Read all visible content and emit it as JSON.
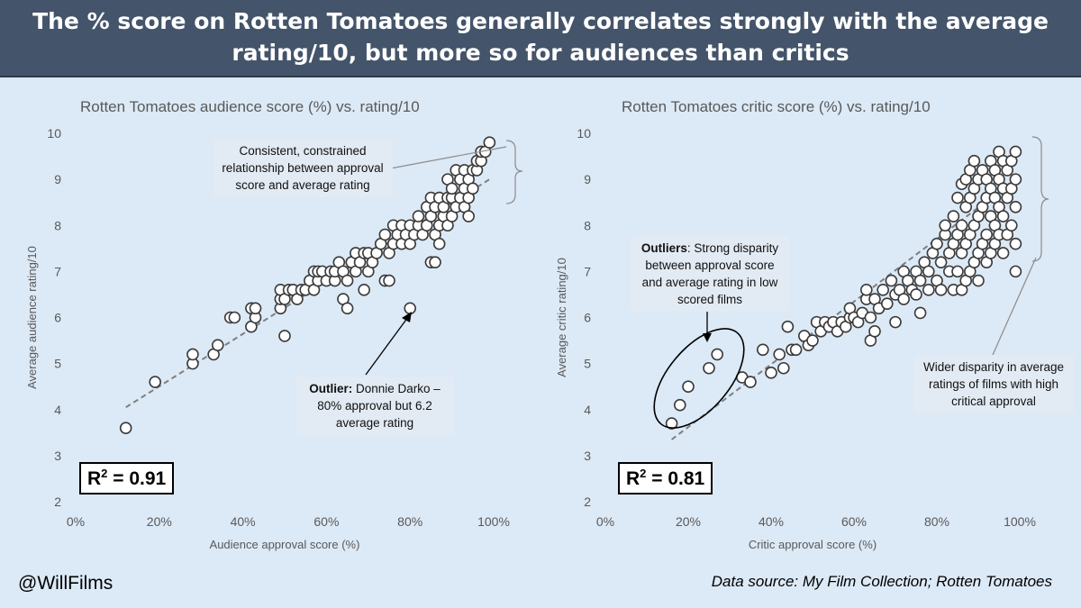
{
  "banner": {
    "line1": "The % score on Rotten Tomatoes generally correlates strongly with the average",
    "line2": "rating/10, but more so for audiences than critics"
  },
  "footer": {
    "handle": "@WillFilms",
    "source": "Data source: My Film Collection; Rotten Tomatoes"
  },
  "chart_data": [
    {
      "type": "scatter",
      "title": "Rotten Tomatoes audience score (%) vs. rating/10",
      "xlabel": "Audience approval score (%)",
      "ylabel": "Average audience rating/10",
      "xlim": [
        0,
        100
      ],
      "ylim": [
        2,
        10
      ],
      "xticks": [
        "0%",
        "20%",
        "40%",
        "60%",
        "80%",
        "100%"
      ],
      "yticks": [
        "2",
        "3",
        "4",
        "5",
        "6",
        "7",
        "8",
        "9",
        "10"
      ],
      "trendline": {
        "style": "dashed",
        "x": [
          12,
          99
        ],
        "y": [
          4.05,
          9.0
        ]
      },
      "r2_label": "0.91",
      "annotations": [
        {
          "label": "Consistent, constrained relationship between approval score and average rating"
        },
        {
          "bold": "Outlier:",
          "label": " Donnie Darko – 80% approval but 6.2 average rating"
        }
      ],
      "points": [
        [
          12,
          3.6
        ],
        [
          19,
          4.6
        ],
        [
          28,
          5.0
        ],
        [
          28,
          5.2
        ],
        [
          33,
          5.2
        ],
        [
          34,
          5.4
        ],
        [
          37,
          6.0
        ],
        [
          38,
          6.0
        ],
        [
          42,
          5.8
        ],
        [
          42,
          6.2
        ],
        [
          43,
          6.0
        ],
        [
          43,
          6.2
        ],
        [
          49,
          6.2
        ],
        [
          49,
          6.4
        ],
        [
          49,
          6.6
        ],
        [
          50,
          5.6
        ],
        [
          50,
          6.4
        ],
        [
          51,
          6.6
        ],
        [
          52,
          6.6
        ],
        [
          53,
          6.4
        ],
        [
          54,
          6.6
        ],
        [
          55,
          6.6
        ],
        [
          56,
          6.8
        ],
        [
          57,
          6.6
        ],
        [
          57,
          7.0
        ],
        [
          58,
          6.8
        ],
        [
          58,
          7.0
        ],
        [
          59,
          7.0
        ],
        [
          60,
          6.8
        ],
        [
          61,
          7.0
        ],
        [
          62,
          6.8
        ],
        [
          62,
          7.0
        ],
        [
          63,
          7.2
        ],
        [
          64,
          6.4
        ],
        [
          64,
          7.0
        ],
        [
          65,
          6.2
        ],
        [
          65,
          6.8
        ],
        [
          66,
          7.2
        ],
        [
          67,
          7.0
        ],
        [
          67,
          7.4
        ],
        [
          68,
          7.2
        ],
        [
          69,
          6.6
        ],
        [
          69,
          7.4
        ],
        [
          70,
          7.0
        ],
        [
          70,
          7.4
        ],
        [
          71,
          7.2
        ],
        [
          72,
          7.4
        ],
        [
          73,
          7.6
        ],
        [
          74,
          6.8
        ],
        [
          74,
          7.8
        ],
        [
          75,
          6.8
        ],
        [
          75,
          7.4
        ],
        [
          76,
          7.6
        ],
        [
          76,
          8.0
        ],
        [
          77,
          7.8
        ],
        [
          78,
          7.6
        ],
        [
          78,
          8.0
        ],
        [
          79,
          7.8
        ],
        [
          80,
          6.2
        ],
        [
          80,
          7.6
        ],
        [
          80,
          8.0
        ],
        [
          81,
          7.8
        ],
        [
          82,
          8.0
        ],
        [
          82,
          8.2
        ],
        [
          83,
          7.8
        ],
        [
          84,
          8.0
        ],
        [
          84,
          8.4
        ],
        [
          85,
          7.2
        ],
        [
          85,
          8.2
        ],
        [
          85,
          8.6
        ],
        [
          86,
          7.2
        ],
        [
          86,
          7.8
        ],
        [
          86,
          8.4
        ],
        [
          87,
          7.6
        ],
        [
          87,
          8.0
        ],
        [
          87,
          8.6
        ],
        [
          88,
          8.2
        ],
        [
          88,
          8.4
        ],
        [
          89,
          8.0
        ],
        [
          89,
          8.6
        ],
        [
          89,
          9.0
        ],
        [
          90,
          8.2
        ],
        [
          90,
          8.6
        ],
        [
          90,
          8.8
        ],
        [
          91,
          8.4
        ],
        [
          91,
          9.2
        ],
        [
          92,
          8.6
        ],
        [
          92,
          9.0
        ],
        [
          93,
          8.4
        ],
        [
          93,
          8.8
        ],
        [
          93,
          9.2
        ],
        [
          94,
          8.2
        ],
        [
          94,
          8.6
        ],
        [
          94,
          9.0
        ],
        [
          95,
          8.8
        ],
        [
          95,
          9.2
        ],
        [
          96,
          9.2
        ],
        [
          96,
          9.4
        ],
        [
          97,
          9.4
        ],
        [
          97,
          9.6
        ],
        [
          98,
          9.6
        ],
        [
          99,
          9.8
        ]
      ]
    },
    {
      "type": "scatter",
      "title": "Rotten Tomatoes critic score (%) vs. rating/10",
      "xlabel": "Critic approval score (%)",
      "ylabel": "Average critic rating/10",
      "xlim": [
        0,
        100
      ],
      "ylim": [
        2,
        10
      ],
      "xticks": [
        "0%",
        "20%",
        "40%",
        "60%",
        "80%",
        "100%"
      ],
      "yticks": [
        "2",
        "3",
        "4",
        "5",
        "6",
        "7",
        "8",
        "9",
        "10"
      ],
      "trendline": {
        "style": "dashed",
        "x": [
          16,
          99
        ],
        "y": [
          3.35,
          9.0
        ]
      },
      "r2_label": "0.81",
      "annotations": [
        {
          "bold": "Outliers",
          "label": ": Strong disparity between approval score and average rating in low scored films"
        },
        {
          "label": "Wider disparity in average ratings of films with high critical approval"
        }
      ],
      "points": [
        [
          16,
          3.7
        ],
        [
          18,
          4.1
        ],
        [
          20,
          4.5
        ],
        [
          25,
          4.9
        ],
        [
          27,
          5.2
        ],
        [
          33,
          4.7
        ],
        [
          35,
          4.6
        ],
        [
          38,
          5.3
        ],
        [
          40,
          4.8
        ],
        [
          42,
          5.2
        ],
        [
          43,
          4.9
        ],
        [
          44,
          5.8
        ],
        [
          45,
          5.3
        ],
        [
          46,
          5.3
        ],
        [
          48,
          5.6
        ],
        [
          49,
          5.4
        ],
        [
          50,
          5.5
        ],
        [
          51,
          5.9
        ],
        [
          52,
          5.7
        ],
        [
          53,
          5.9
        ],
        [
          54,
          5.8
        ],
        [
          55,
          5.9
        ],
        [
          56,
          5.7
        ],
        [
          57,
          5.9
        ],
        [
          58,
          5.8
        ],
        [
          59,
          6.0
        ],
        [
          59,
          6.2
        ],
        [
          60,
          6.0
        ],
        [
          61,
          5.9
        ],
        [
          62,
          6.1
        ],
        [
          63,
          6.4
        ],
        [
          63,
          6.6
        ],
        [
          64,
          5.5
        ],
        [
          64,
          6.0
        ],
        [
          65,
          5.7
        ],
        [
          65,
          6.4
        ],
        [
          66,
          6.2
        ],
        [
          67,
          6.6
        ],
        [
          68,
          6.3
        ],
        [
          69,
          6.8
        ],
        [
          70,
          5.9
        ],
        [
          70,
          6.5
        ],
        [
          71,
          6.6
        ],
        [
          72,
          7.0
        ],
        [
          72,
          6.4
        ],
        [
          73,
          6.8
        ],
        [
          74,
          6.6
        ],
        [
          75,
          7.0
        ],
        [
          75,
          6.5
        ],
        [
          76,
          6.1
        ],
        [
          76,
          6.8
        ],
        [
          77,
          7.2
        ],
        [
          78,
          6.6
        ],
        [
          78,
          7.0
        ],
        [
          79,
          7.4
        ],
        [
          80,
          6.8
        ],
        [
          80,
          7.6
        ],
        [
          81,
          6.6
        ],
        [
          81,
          7.2
        ],
        [
          82,
          7.8
        ],
        [
          82,
          8.0
        ],
        [
          83,
          7.0
        ],
        [
          83,
          7.4
        ],
        [
          84,
          6.6
        ],
        [
          84,
          7.6
        ],
        [
          84,
          8.2
        ],
        [
          85,
          7.0
        ],
        [
          85,
          7.8
        ],
        [
          85,
          8.6
        ],
        [
          86,
          6.6
        ],
        [
          86,
          7.4
        ],
        [
          86,
          8.0
        ],
        [
          86,
          8.9
        ],
        [
          87,
          6.8
        ],
        [
          87,
          7.6
        ],
        [
          87,
          8.4
        ],
        [
          87,
          9.0
        ],
        [
          88,
          7.0
        ],
        [
          88,
          7.8
        ],
        [
          88,
          8.6
        ],
        [
          88,
          9.2
        ],
        [
          89,
          7.2
        ],
        [
          89,
          8.0
        ],
        [
          89,
          8.8
        ],
        [
          89,
          9.4
        ],
        [
          90,
          6.8
        ],
        [
          90,
          7.4
        ],
        [
          90,
          8.2
        ],
        [
          90,
          9.0
        ],
        [
          91,
          7.6
        ],
        [
          91,
          8.4
        ],
        [
          91,
          9.2
        ],
        [
          92,
          7.2
        ],
        [
          92,
          7.8
        ],
        [
          92,
          8.6
        ],
        [
          92,
          9.0
        ],
        [
          93,
          7.4
        ],
        [
          93,
          8.2
        ],
        [
          93,
          8.8
        ],
        [
          93,
          9.4
        ],
        [
          94,
          7.6
        ],
        [
          94,
          8.0
        ],
        [
          94,
          8.6
        ],
        [
          94,
          9.2
        ],
        [
          95,
          7.8
        ],
        [
          95,
          8.4
        ],
        [
          95,
          9.0
        ],
        [
          95,
          9.6
        ],
        [
          96,
          7.4
        ],
        [
          96,
          8.2
        ],
        [
          96,
          8.8
        ],
        [
          96,
          9.4
        ],
        [
          97,
          7.8
        ],
        [
          97,
          8.6
        ],
        [
          97,
          9.2
        ],
        [
          98,
          8.0
        ],
        [
          98,
          8.8
        ],
        [
          98,
          9.4
        ],
        [
          99,
          7.6
        ],
        [
          99,
          8.4
        ],
        [
          99,
          9.0
        ],
        [
          99,
          9.6
        ],
        [
          99,
          7.0
        ]
      ]
    }
  ]
}
